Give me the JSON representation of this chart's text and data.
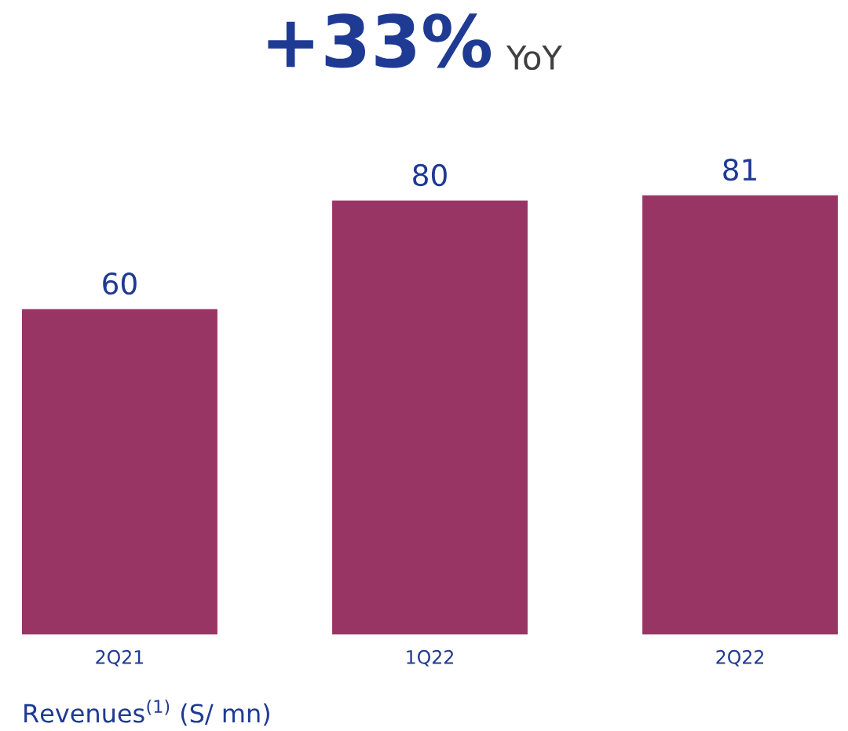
{
  "chart_data": {
    "type": "bar",
    "title": "+33%",
    "subtitle": "YoY",
    "xlabel": "Revenues$^{(1)}$ (S/ mn)",
    "categories": [
      "2Q21",
      "1Q22",
      "2Q22"
    ],
    "values": [
      60,
      80,
      81
    ],
    "color": "#993564",
    "data_labels": true,
    "grid": false,
    "legend": false
  }
}
